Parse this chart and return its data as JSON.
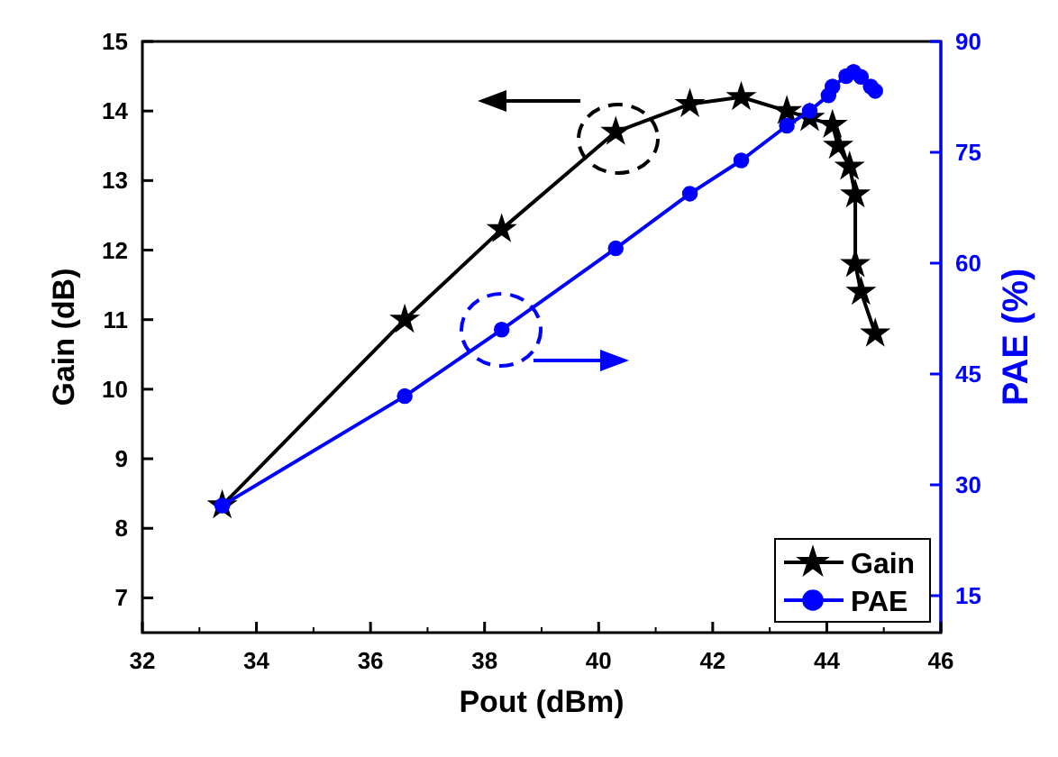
{
  "chart_data": {
    "type": "line",
    "xlabel": "Pout (dBm)",
    "ylabel": "Gain (dB)",
    "y2label": "PAE (%)",
    "xlim": [
      32,
      46
    ],
    "xticks": [
      32,
      34,
      36,
      38,
      40,
      42,
      44,
      46
    ],
    "ylim": [
      6.5,
      15
    ],
    "yticks": [
      7,
      8,
      9,
      10,
      11,
      12,
      13,
      14,
      15
    ],
    "y2lim": [
      10,
      90
    ],
    "y2ticks": [
      15,
      30,
      45,
      60,
      75,
      90
    ],
    "legend": "bottom right",
    "grid": false,
    "series": [
      {
        "name": "Gain",
        "color": "#000000",
        "marker": "star",
        "x": [
          33.4,
          36.6,
          38.3,
          40.3,
          41.6,
          42.5,
          43.3,
          43.7,
          44.1,
          44.2,
          44.4,
          44.5,
          44.5,
          44.6,
          44.85
        ],
        "values": [
          8.33,
          11.0,
          12.3,
          13.7,
          14.1,
          14.2,
          14.0,
          13.9,
          13.8,
          13.5,
          13.2,
          12.8,
          11.8,
          11.4,
          10.8
        ]
      },
      {
        "name": "PAE",
        "color": "#0000ff",
        "marker": "circle",
        "axis": "y2",
        "x": [
          33.4,
          36.6,
          38.3,
          40.3,
          41.6,
          42.5,
          43.3,
          43.7,
          44.03,
          44.1,
          44.34,
          44.47,
          44.6,
          44.77,
          44.85
        ],
        "values": [
          27.2,
          42,
          51,
          62,
          69.4,
          73.9,
          78.6,
          80.6,
          82.7,
          83.9,
          85.3,
          85.9,
          85.2,
          83.9,
          83.3
        ]
      }
    ]
  }
}
